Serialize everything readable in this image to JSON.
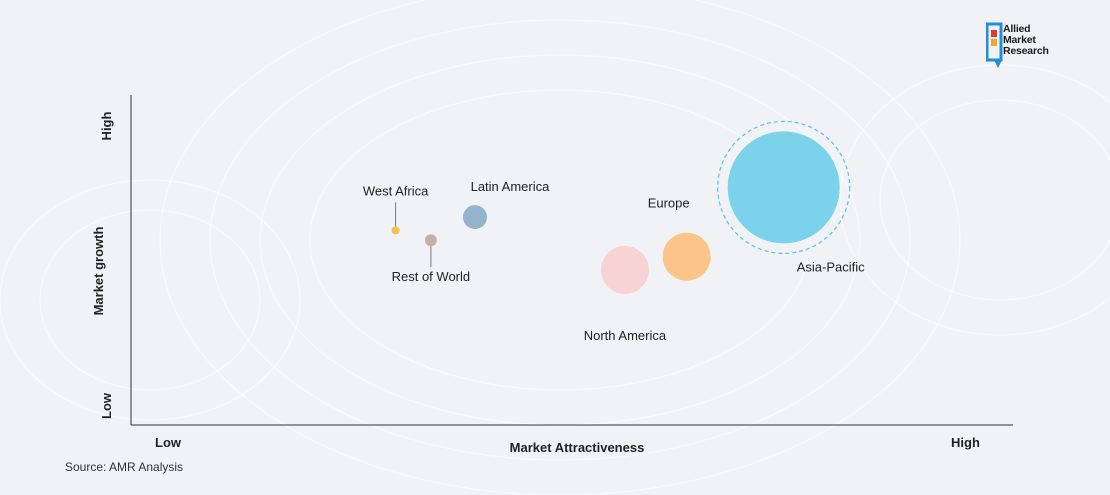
{
  "logo": {
    "lines": [
      "Allied",
      "Market",
      "Research"
    ],
    "colors": {
      "blue": "#1f8fd6",
      "orange": "#f5a623",
      "red": "#e53935",
      "dark": "#1a1a1a"
    }
  },
  "source": "Source: AMR Analysis",
  "chart_data": {
    "type": "bubble",
    "title": "",
    "xlabel": "Market Attractiveness",
    "ylabel": "Market growth",
    "x_ticks": {
      "low": "Low",
      "high": "High"
    },
    "y_ticks": {
      "low": "Low",
      "high": "High"
    },
    "xlim": [
      0,
      100
    ],
    "ylim": [
      0,
      100
    ],
    "grid": false,
    "legend": "none",
    "series": [
      {
        "name": "West Africa",
        "x": 30,
        "y": 59,
        "size": 2,
        "color": "#f2c14e",
        "label_position": "above"
      },
      {
        "name": "Rest of World",
        "x": 34,
        "y": 56,
        "size": 3,
        "color": "#c9ada7",
        "label_position": "below"
      },
      {
        "name": "Latin America",
        "x": 39,
        "y": 63,
        "size": 6,
        "color": "#94b3cc",
        "label_position": "above"
      },
      {
        "name": "North America",
        "x": 56,
        "y": 47,
        "size": 12,
        "color": "#f7d3d5",
        "label_position": "below"
      },
      {
        "name": "Europe",
        "x": 63,
        "y": 51,
        "size": 12,
        "color": "#fbc58a",
        "label_position": "above"
      },
      {
        "name": "Asia-Pacific",
        "x": 74,
        "y": 72,
        "size": 28,
        "color": "#7ad3ea",
        "label_position": "right-below",
        "ring_color": "#5fc6e6"
      }
    ]
  }
}
